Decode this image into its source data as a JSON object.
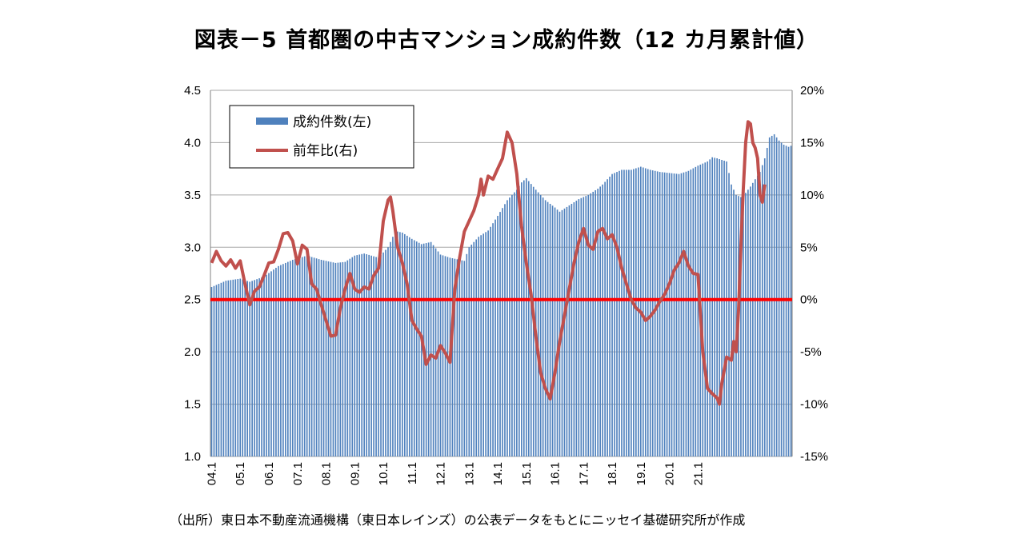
{
  "chart_data": {
    "type": "bar+line",
    "title": "図表－5  首都圏の中古マンション成約件数（12 カ月累計値）",
    "source": "（出所）東日本不動産流通機構（東日本レインズ）の公表データをもとにニッセイ基礎研究所が作成",
    "x_tick_labels": [
      "04.1",
      "05.1",
      "06.1",
      "07.1",
      "08.1",
      "09.1",
      "10.1",
      "11.1",
      "12.1",
      "13.1",
      "14.1",
      "15.1",
      "16.1",
      "17.1",
      "18.1",
      "19.1",
      "20.1",
      "21.1"
    ],
    "y_left": {
      "min": 1.0,
      "max": 4.5,
      "ticks": [
        "1.0",
        "1.5",
        "2.0",
        "2.5",
        "3.0",
        "3.5",
        "4.0",
        "4.5"
      ]
    },
    "y_right": {
      "min": -15,
      "max": 20,
      "ticks": [
        "-15%",
        "-10%",
        "-5%",
        "0%",
        "5%",
        "10%",
        "15%",
        "20%"
      ]
    },
    "legend": {
      "bars": "成約件数(左)",
      "line": "前年比(右)",
      "placement": "top-left"
    },
    "colors": {
      "bars": "#4f81bd",
      "line": "#c0504d",
      "zero_line": "#ff0000",
      "frame": "#808080"
    },
    "bar_anchors": [
      [
        0,
        2.62
      ],
      [
        6,
        2.68
      ],
      [
        12,
        2.7
      ],
      [
        16,
        2.67
      ],
      [
        22,
        2.72
      ],
      [
        28,
        2.82
      ],
      [
        34,
        2.88
      ],
      [
        40,
        2.92
      ],
      [
        46,
        2.88
      ],
      [
        52,
        2.85
      ],
      [
        56,
        2.86
      ],
      [
        60,
        2.92
      ],
      [
        64,
        2.94
      ],
      [
        70,
        2.9
      ],
      [
        74,
        3.0
      ],
      [
        76,
        3.1
      ],
      [
        78,
        3.15
      ],
      [
        80,
        3.14
      ],
      [
        84,
        3.08
      ],
      [
        88,
        3.03
      ],
      [
        92,
        3.05
      ],
      [
        96,
        2.93
      ],
      [
        100,
        2.9
      ],
      [
        104,
        2.88
      ],
      [
        106,
        2.87
      ],
      [
        108,
        3.0
      ],
      [
        112,
        3.1
      ],
      [
        116,
        3.16
      ],
      [
        120,
        3.3
      ],
      [
        124,
        3.45
      ],
      [
        128,
        3.55
      ],
      [
        130,
        3.62
      ],
      [
        132,
        3.66
      ],
      [
        136,
        3.55
      ],
      [
        140,
        3.45
      ],
      [
        144,
        3.38
      ],
      [
        146,
        3.34
      ],
      [
        150,
        3.4
      ],
      [
        154,
        3.46
      ],
      [
        158,
        3.5
      ],
      [
        162,
        3.56
      ],
      [
        164,
        3.6
      ],
      [
        168,
        3.7
      ],
      [
        172,
        3.74
      ],
      [
        176,
        3.74
      ],
      [
        180,
        3.77
      ],
      [
        184,
        3.74
      ],
      [
        188,
        3.72
      ],
      [
        192,
        3.71
      ],
      [
        196,
        3.7
      ],
      [
        200,
        3.73
      ],
      [
        204,
        3.78
      ],
      [
        208,
        3.82
      ],
      [
        210,
        3.86
      ],
      [
        212,
        3.85
      ],
      [
        216,
        3.82
      ],
      [
        218,
        3.6
      ],
      [
        220,
        3.5
      ],
      [
        222,
        3.48
      ],
      [
        224,
        3.52
      ],
      [
        226,
        3.58
      ],
      [
        228,
        3.65
      ],
      [
        230,
        3.72
      ],
      [
        232,
        3.85
      ],
      [
        234,
        4.05
      ],
      [
        236,
        4.08
      ],
      [
        238,
        4.02
      ],
      [
        240,
        3.98
      ],
      [
        242,
        3.96
      ],
      [
        244,
        3.98
      ]
    ],
    "yoy_anchors": [
      [
        0,
        3.5
      ],
      [
        2,
        4.6
      ],
      [
        4,
        3.7
      ],
      [
        6,
        3.2
      ],
      [
        8,
        3.8
      ],
      [
        10,
        3.0
      ],
      [
        12,
        3.7
      ],
      [
        14,
        1.5
      ],
      [
        16,
        -0.5
      ],
      [
        18,
        0.8
      ],
      [
        20,
        1.2
      ],
      [
        22,
        2.3
      ],
      [
        24,
        3.5
      ],
      [
        26,
        3.6
      ],
      [
        28,
        4.8
      ],
      [
        30,
        6.3
      ],
      [
        32,
        6.4
      ],
      [
        34,
        5.6
      ],
      [
        36,
        3.4
      ],
      [
        38,
        5.2
      ],
      [
        40,
        4.8
      ],
      [
        42,
        1.5
      ],
      [
        44,
        1.0
      ],
      [
        46,
        -0.5
      ],
      [
        48,
        -2.0
      ],
      [
        50,
        -3.5
      ],
      [
        52,
        -3.4
      ],
      [
        54,
        -0.8
      ],
      [
        56,
        1.0
      ],
      [
        58,
        2.5
      ],
      [
        60,
        1.0
      ],
      [
        62,
        0.7
      ],
      [
        64,
        1.2
      ],
      [
        66,
        1.0
      ],
      [
        68,
        2.3
      ],
      [
        70,
        3.0
      ],
      [
        72,
        7.5
      ],
      [
        74,
        9.5
      ],
      [
        75,
        9.8
      ],
      [
        76,
        8.5
      ],
      [
        78,
        5.0
      ],
      [
        80,
        3.5
      ],
      [
        82,
        1.5
      ],
      [
        84,
        -2.0
      ],
      [
        86,
        -2.8
      ],
      [
        88,
        -3.5
      ],
      [
        90,
        -6.2
      ],
      [
        92,
        -5.3
      ],
      [
        94,
        -5.6
      ],
      [
        96,
        -4.4
      ],
      [
        98,
        -5.1
      ],
      [
        100,
        -6.0
      ],
      [
        102,
        1.0
      ],
      [
        104,
        4.0
      ],
      [
        106,
        6.5
      ],
      [
        108,
        7.5
      ],
      [
        110,
        8.5
      ],
      [
        112,
        10.0
      ],
      [
        113,
        11.5
      ],
      [
        114,
        10.0
      ],
      [
        116,
        11.8
      ],
      [
        118,
        11.5
      ],
      [
        120,
        12.5
      ],
      [
        122,
        13.5
      ],
      [
        124,
        16.0
      ],
      [
        126,
        15.0
      ],
      [
        127,
        13.5
      ],
      [
        128,
        12.0
      ],
      [
        130,
        7.0
      ],
      [
        132,
        3.5
      ],
      [
        134,
        0.5
      ],
      [
        136,
        -3.5
      ],
      [
        138,
        -7.0
      ],
      [
        140,
        -8.5
      ],
      [
        142,
        -9.5
      ],
      [
        144,
        -7.0
      ],
      [
        146,
        -4.0
      ],
      [
        148,
        -1.5
      ],
      [
        150,
        1.0
      ],
      [
        152,
        3.5
      ],
      [
        154,
        5.5
      ],
      [
        156,
        6.8
      ],
      [
        158,
        5.2
      ],
      [
        160,
        4.8
      ],
      [
        162,
        6.5
      ],
      [
        164,
        6.8
      ],
      [
        166,
        5.8
      ],
      [
        168,
        6.2
      ],
      [
        170,
        5.0
      ],
      [
        172,
        3.0
      ],
      [
        174,
        1.5
      ],
      [
        176,
        0.0
      ],
      [
        178,
        -0.8
      ],
      [
        180,
        -1.2
      ],
      [
        182,
        -2.0
      ],
      [
        184,
        -1.6
      ],
      [
        186,
        -1.0
      ],
      [
        188,
        -0.2
      ],
      [
        190,
        0.5
      ],
      [
        192,
        1.5
      ],
      [
        194,
        2.8
      ],
      [
        196,
        3.5
      ],
      [
        198,
        4.6
      ],
      [
        200,
        3.2
      ],
      [
        202,
        2.5
      ],
      [
        204,
        2.4
      ],
      [
        206,
        -5.0
      ],
      [
        208,
        -8.5
      ],
      [
        210,
        -9.0
      ],
      [
        212,
        -9.4
      ],
      [
        213,
        -10.0
      ],
      [
        214,
        -8.0
      ],
      [
        216,
        -5.5
      ],
      [
        218,
        -5.8
      ],
      [
        219,
        -4.0
      ],
      [
        220,
        -5.0
      ],
      [
        221,
        -1.0
      ],
      [
        222,
        5.0
      ],
      [
        223,
        10.5
      ],
      [
        224,
        15.0
      ],
      [
        225,
        17.0
      ],
      [
        226,
        16.8
      ],
      [
        227,
        15.0
      ],
      [
        228,
        14.5
      ],
      [
        229,
        13.5
      ],
      [
        230,
        10.0
      ],
      [
        231,
        9.3
      ],
      [
        232,
        11.0
      ]
    ],
    "months": 244
  }
}
